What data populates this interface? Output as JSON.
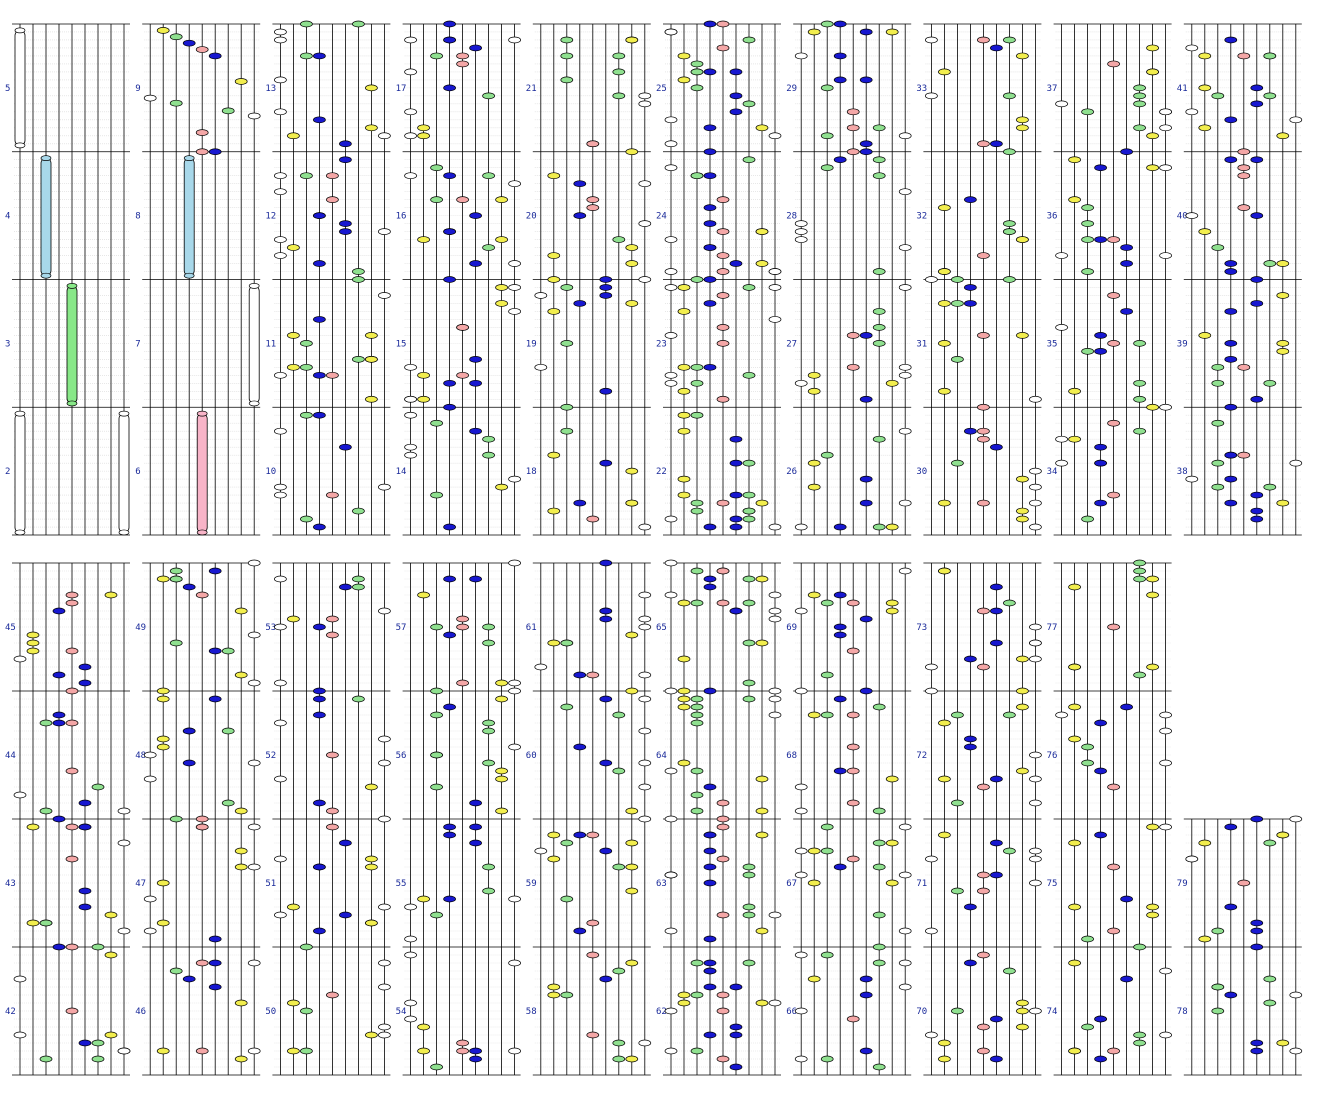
{
  "label_color": "#1a2a9a",
  "colors": {
    "white": "#ffffff",
    "yellow": "#f2ee4e",
    "green": "#8fe08f",
    "pink": "#f4a7a7",
    "blue": "#1818d0",
    "cyan": "#a8d8ea",
    "longgreen": "#88e888",
    "longpink": "#f8b4c8"
  },
  "blocks": [
    {
      "id": "b1",
      "measures": [
        "5",
        "4",
        "3",
        "2"
      ],
      "lanes": 9,
      "notes": [],
      "holds": [
        {
          "lane": 0,
          "start": 0.05,
          "end": 0.95,
          "color": "white"
        },
        {
          "lane": 2,
          "start": 1.05,
          "end": 1.97,
          "color": "cyan"
        },
        {
          "lane": 4,
          "start": 2.05,
          "end": 2.97,
          "color": "longgreen"
        },
        {
          "lane": 0,
          "start": 3.05,
          "end": 3.98,
          "color": "white"
        },
        {
          "lane": 8,
          "start": 3.05,
          "end": 3.98,
          "color": "white"
        }
      ]
    },
    {
      "id": "b2",
      "measures": [
        "9",
        "8",
        "7",
        "6"
      ],
      "lanes": 9,
      "notes": [
        {
          "lane": 1,
          "pos": 0.05,
          "color": "yellow"
        },
        {
          "lane": 2,
          "pos": 0.1,
          "color": "green"
        },
        {
          "lane": 3,
          "pos": 0.15,
          "color": "blue"
        },
        {
          "lane": 4,
          "pos": 0.2,
          "color": "pink"
        },
        {
          "lane": 5,
          "pos": 0.25,
          "color": "blue"
        },
        {
          "lane": 7,
          "pos": 0.45,
          "color": "yellow"
        },
        {
          "lane": 0,
          "pos": 0.58,
          "color": "white"
        },
        {
          "lane": 2,
          "pos": 0.62,
          "color": "green"
        },
        {
          "lane": 6,
          "pos": 0.68,
          "color": "green"
        },
        {
          "lane": 8,
          "pos": 0.72,
          "color": "white"
        },
        {
          "lane": 4,
          "pos": 0.85,
          "color": "pink"
        },
        {
          "lane": 4,
          "pos": 1.0,
          "color": "pink"
        },
        {
          "lane": 5,
          "pos": 1.0,
          "color": "blue"
        }
      ],
      "holds": [
        {
          "lane": 3,
          "start": 1.05,
          "end": 1.97,
          "color": "cyan"
        },
        {
          "lane": 8,
          "start": 2.05,
          "end": 2.97,
          "color": "white"
        },
        {
          "lane": 4,
          "start": 3.05,
          "end": 3.98,
          "color": "longpink"
        }
      ]
    },
    {
      "id": "b3",
      "measures": [
        "13",
        "12",
        "11",
        "10"
      ],
      "lanes": 9,
      "seed": 13
    },
    {
      "id": "b4",
      "measures": [
        "17",
        "16",
        "15",
        "14"
      ],
      "lanes": 9,
      "seed": 17
    },
    {
      "id": "b5",
      "measures": [
        "21",
        "20",
        "19",
        "18"
      ],
      "lanes": 9,
      "seed": 21
    },
    {
      "id": "b6",
      "measures": [
        "25",
        "24",
        "23",
        "22"
      ],
      "lanes": 9,
      "seed": 25,
      "dense": true
    },
    {
      "id": "b7",
      "measures": [
        "29",
        "28",
        "27",
        "26"
      ],
      "lanes": 9,
      "seed": 29
    },
    {
      "id": "b8",
      "measures": [
        "33",
        "32",
        "31",
        "30"
      ],
      "lanes": 9,
      "seed": 33
    },
    {
      "id": "b9",
      "measures": [
        "37",
        "36",
        "35",
        "34"
      ],
      "lanes": 9,
      "seed": 37
    },
    {
      "id": "b10",
      "measures": [
        "41",
        "40",
        "39",
        "38"
      ],
      "lanes": 9,
      "seed": 41
    },
    {
      "id": "b11",
      "measures": [
        "45",
        "44",
        "43",
        "42"
      ],
      "lanes": 9,
      "seed": 45
    },
    {
      "id": "b12",
      "measures": [
        "49",
        "48",
        "47",
        "46"
      ],
      "lanes": 9,
      "seed": 49
    },
    {
      "id": "b13",
      "measures": [
        "53",
        "52",
        "51",
        "50"
      ],
      "lanes": 9,
      "seed": 53
    },
    {
      "id": "b14",
      "measures": [
        "57",
        "56",
        "55",
        "54"
      ],
      "lanes": 9,
      "seed": 57
    },
    {
      "id": "b15",
      "measures": [
        "61",
        "60",
        "59",
        "58"
      ],
      "lanes": 9,
      "seed": 61
    },
    {
      "id": "b16",
      "measures": [
        "65",
        "64",
        "63",
        "62"
      ],
      "lanes": 9,
      "seed": 65,
      "dense": true
    },
    {
      "id": "b17",
      "measures": [
        "69",
        "68",
        "67",
        "66"
      ],
      "lanes": 9,
      "seed": 69
    },
    {
      "id": "b18",
      "measures": [
        "73",
        "72",
        "71",
        "70"
      ],
      "lanes": 9,
      "seed": 73
    },
    {
      "id": "b19",
      "measures": [
        "77",
        "76",
        "75",
        "74"
      ],
      "lanes": 9,
      "seed": 77
    },
    {
      "id": "b20",
      "measures": [
        "79",
        "78"
      ],
      "lanes": 9,
      "seed": 79,
      "short": true
    }
  ]
}
